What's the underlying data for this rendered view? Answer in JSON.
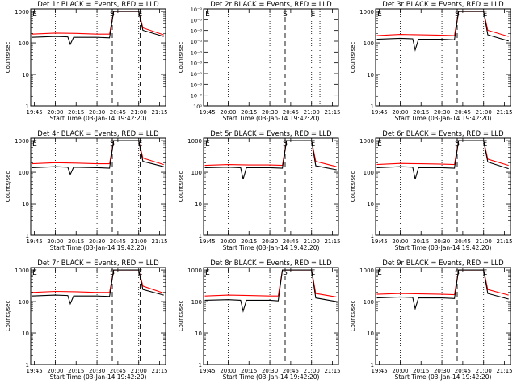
{
  "figure": {
    "xlabel": "Start Time (03-Jan-14 19:42:20)",
    "ylabel": "Counts/sec",
    "x_ticks": [
      "19:45",
      "20:00",
      "20:15",
      "20:30",
      "20:45",
      "21:00",
      "21:15"
    ],
    "y_ticks_normal": [
      "1",
      "10",
      "100",
      "1000"
    ],
    "y_ticks_zero": [
      "10⁻⁰",
      "10⁻⁰",
      "10⁻⁰",
      "10⁻⁰",
      "10⁻⁰",
      "10⁻⁰",
      "10⁻⁰",
      "10⁻⁰",
      "10⁻⁰",
      "10⁰"
    ],
    "colors": {
      "events": "#000000",
      "lld": "#ff0000"
    }
  },
  "chart_data": [
    {
      "type": "line",
      "title": "Det 1r BLACK = Events, RED = LLD",
      "xlim": [
        19.7056,
        21.3222
      ],
      "ylim": [
        1,
        1200
      ],
      "ylog": true,
      "markers": {
        "S": 20.6833,
        "E": 21.0167
      },
      "gridlines": [
        20.0,
        20.5,
        21.0
      ],
      "events": [
        [
          19.72,
          150
        ],
        [
          20.0,
          160
        ],
        [
          20.15,
          155
        ],
        [
          20.18,
          90
        ],
        [
          20.22,
          150
        ],
        [
          20.5,
          150
        ],
        [
          20.65,
          145
        ],
        [
          20.7,
          1000
        ],
        [
          21.0,
          1000
        ],
        [
          21.05,
          250
        ],
        [
          21.3,
          160
        ]
      ],
      "lld": [
        [
          19.72,
          190
        ],
        [
          20.0,
          205
        ],
        [
          20.25,
          200
        ],
        [
          20.5,
          190
        ],
        [
          20.65,
          190
        ],
        [
          20.7,
          1000
        ],
        [
          21.0,
          1000
        ],
        [
          21.05,
          300
        ],
        [
          21.3,
          180
        ]
      ]
    },
    {
      "type": "line",
      "title": "Det 2r BLACK = Events, RED = LLD",
      "xlim": [
        19.7056,
        21.3222
      ],
      "ylim": [
        0.8,
        1.2
      ],
      "ylog": false,
      "markers": {
        "S": 20.6833,
        "E": 21.0167
      },
      "gridlines": [
        20.0,
        20.5,
        21.0,
        21.1
      ],
      "events": [],
      "lld": []
    },
    {
      "type": "line",
      "title": "Det 3r BLACK = Events, RED = LLD",
      "xlim": [
        19.7056,
        21.3222
      ],
      "ylim": [
        1,
        1200
      ],
      "ylog": true,
      "markers": {
        "S": 20.6833,
        "E": 21.0167
      },
      "gridlines": [
        20.0,
        20.5,
        21.0
      ],
      "events": [
        [
          19.72,
          130
        ],
        [
          20.0,
          140
        ],
        [
          20.15,
          135
        ],
        [
          20.18,
          60
        ],
        [
          20.22,
          130
        ],
        [
          20.5,
          130
        ],
        [
          20.65,
          125
        ],
        [
          20.7,
          1000
        ],
        [
          21.0,
          1000
        ],
        [
          21.05,
          180
        ],
        [
          21.3,
          115
        ]
      ],
      "lld": [
        [
          19.72,
          170
        ],
        [
          20.0,
          185
        ],
        [
          20.25,
          180
        ],
        [
          20.5,
          175
        ],
        [
          20.65,
          170
        ],
        [
          20.7,
          1000
        ],
        [
          21.0,
          1000
        ],
        [
          21.05,
          250
        ],
        [
          21.3,
          160
        ]
      ]
    },
    {
      "type": "line",
      "title": "Det 4r BLACK = Events, RED = LLD",
      "xlim": [
        19.7056,
        21.3222
      ],
      "ylim": [
        1,
        1200
      ],
      "ylog": true,
      "markers": {
        "S": 20.6833,
        "E": 21.0167
      },
      "gridlines": [
        20.0,
        20.5,
        21.0
      ],
      "events": [
        [
          19.72,
          140
        ],
        [
          20.0,
          150
        ],
        [
          20.15,
          145
        ],
        [
          20.18,
          85
        ],
        [
          20.22,
          145
        ],
        [
          20.5,
          140
        ],
        [
          20.65,
          135
        ],
        [
          20.7,
          1000
        ],
        [
          21.0,
          1000
        ],
        [
          21.05,
          220
        ],
        [
          21.3,
          150
        ]
      ],
      "lld": [
        [
          19.72,
          185
        ],
        [
          20.0,
          200
        ],
        [
          20.25,
          195
        ],
        [
          20.5,
          185
        ],
        [
          20.65,
          185
        ],
        [
          20.7,
          1000
        ],
        [
          21.0,
          1000
        ],
        [
          21.05,
          280
        ],
        [
          21.3,
          175
        ]
      ]
    },
    {
      "type": "line",
      "title": "Det 5r BLACK = Events, RED = LLD",
      "xlim": [
        19.7056,
        21.3222
      ],
      "ylim": [
        1,
        1200
      ],
      "ylog": true,
      "markers": {
        "S": 20.6833,
        "E": 21.0167
      },
      "gridlines": [
        20.0,
        20.5,
        21.0
      ],
      "events": [
        [
          19.72,
          140
        ],
        [
          20.0,
          145
        ],
        [
          20.15,
          140
        ],
        [
          20.18,
          60
        ],
        [
          20.22,
          140
        ],
        [
          20.5,
          140
        ],
        [
          20.65,
          135
        ],
        [
          20.7,
          1000
        ],
        [
          21.0,
          1000
        ],
        [
          21.05,
          160
        ],
        [
          21.3,
          120
        ]
      ],
      "lld": [
        [
          19.72,
          165
        ],
        [
          20.0,
          175
        ],
        [
          20.25,
          170
        ],
        [
          20.5,
          170
        ],
        [
          20.65,
          165
        ],
        [
          20.7,
          1000
        ],
        [
          21.0,
          1000
        ],
        [
          21.05,
          220
        ],
        [
          21.3,
          150
        ]
      ]
    },
    {
      "type": "line",
      "title": "Det 6r BLACK = Events, RED = LLD",
      "xlim": [
        19.7056,
        21.3222
      ],
      "ylim": [
        1,
        1200
      ],
      "ylog": true,
      "markers": {
        "S": 20.6833,
        "E": 21.0167
      },
      "gridlines": [
        20.0,
        20.5,
        21.0
      ],
      "events": [
        [
          19.72,
          140
        ],
        [
          20.0,
          150
        ],
        [
          20.15,
          145
        ],
        [
          20.18,
          60
        ],
        [
          20.22,
          140
        ],
        [
          20.5,
          140
        ],
        [
          20.65,
          135
        ],
        [
          20.7,
          1000
        ],
        [
          21.0,
          1000
        ],
        [
          21.05,
          210
        ],
        [
          21.3,
          130
        ]
      ],
      "lld": [
        [
          19.72,
          175
        ],
        [
          20.0,
          190
        ],
        [
          20.25,
          185
        ],
        [
          20.5,
          180
        ],
        [
          20.65,
          175
        ],
        [
          20.7,
          1000
        ],
        [
          21.0,
          1000
        ],
        [
          21.05,
          260
        ],
        [
          21.3,
          165
        ]
      ]
    },
    {
      "type": "line",
      "title": "Det 7r BLACK = Events, RED = LLD",
      "xlim": [
        19.7056,
        21.3222
      ],
      "ylim": [
        1,
        1200
      ],
      "ylog": true,
      "markers": {
        "S": 20.6833,
        "E": 21.0167
      },
      "gridlines": [
        20.0,
        20.5,
        21.0
      ],
      "events": [
        [
          19.72,
          150
        ],
        [
          20.0,
          160
        ],
        [
          20.15,
          155
        ],
        [
          20.18,
          85
        ],
        [
          20.22,
          150
        ],
        [
          20.5,
          150
        ],
        [
          20.65,
          145
        ],
        [
          20.7,
          1000
        ],
        [
          21.0,
          1000
        ],
        [
          21.05,
          240
        ],
        [
          21.3,
          160
        ]
      ],
      "lld": [
        [
          19.72,
          195
        ],
        [
          20.0,
          210
        ],
        [
          20.25,
          205
        ],
        [
          20.5,
          195
        ],
        [
          20.65,
          195
        ],
        [
          20.7,
          1000
        ],
        [
          21.0,
          1000
        ],
        [
          21.05,
          310
        ],
        [
          21.3,
          185
        ]
      ]
    },
    {
      "type": "line",
      "title": "Det 8r BLACK = Events, RED = LLD",
      "xlim": [
        19.7056,
        21.3222
      ],
      "ylim": [
        1,
        1200
      ],
      "ylog": true,
      "markers": {
        "S": 20.6833,
        "E": 21.0167
      },
      "gridlines": [
        20.0,
        20.5,
        21.0
      ],
      "events": [
        [
          19.72,
          110
        ],
        [
          20.0,
          115
        ],
        [
          20.15,
          110
        ],
        [
          20.18,
          50
        ],
        [
          20.22,
          110
        ],
        [
          20.5,
          110
        ],
        [
          20.6,
          105
        ],
        [
          20.65,
          1000
        ],
        [
          21.0,
          1000
        ],
        [
          21.05,
          130
        ],
        [
          21.3,
          100
        ]
      ],
      "lld": [
        [
          19.72,
          150
        ],
        [
          20.0,
          160
        ],
        [
          20.25,
          155
        ],
        [
          20.5,
          150
        ],
        [
          20.6,
          150
        ],
        [
          20.65,
          1000
        ],
        [
          21.0,
          1000
        ],
        [
          21.05,
          180
        ],
        [
          21.3,
          140
        ]
      ]
    },
    {
      "type": "line",
      "title": "Det 9r BLACK = Events, RED = LLD",
      "xlim": [
        19.7056,
        21.3222
      ],
      "ylim": [
        1,
        1200
      ],
      "ylog": true,
      "markers": {
        "S": 20.6833,
        "E": 21.0167
      },
      "gridlines": [
        20.0,
        20.5,
        21.0
      ],
      "events": [
        [
          19.72,
          130
        ],
        [
          20.0,
          140
        ],
        [
          20.15,
          135
        ],
        [
          20.18,
          60
        ],
        [
          20.22,
          130
        ],
        [
          20.5,
          130
        ],
        [
          20.65,
          125
        ],
        [
          20.7,
          1000
        ],
        [
          21.0,
          1000
        ],
        [
          21.05,
          180
        ],
        [
          21.3,
          120
        ]
      ],
      "lld": [
        [
          19.72,
          170
        ],
        [
          20.0,
          180
        ],
        [
          20.25,
          175
        ],
        [
          20.5,
          170
        ],
        [
          20.65,
          165
        ],
        [
          20.7,
          1000
        ],
        [
          21.0,
          1000
        ],
        [
          21.05,
          240
        ],
        [
          21.3,
          160
        ]
      ]
    }
  ]
}
